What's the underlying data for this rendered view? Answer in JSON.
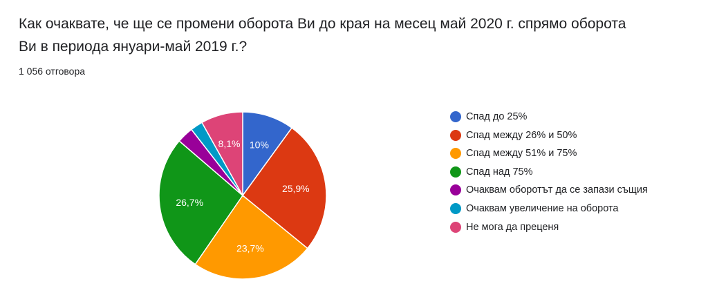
{
  "title": "Как очаквате, че ще се промени оборота Ви до края на месец май 2020 г. спрямо оборота Ви в периода януари-май 2019 г.?",
  "responses": "1 056 отговора",
  "chart_data": {
    "type": "pie",
    "start_angle_deg": 90,
    "direction": "clockwise",
    "slices": [
      {
        "label": "Спад до 25%",
        "value": 10,
        "display": "10%",
        "color": "#3366cc"
      },
      {
        "label": "Спад между 26% и 50%",
        "value": 25.9,
        "display": "25,9%",
        "color": "#dc3912"
      },
      {
        "label": "Спад между 51% и 75%",
        "value": 23.7,
        "display": "23,7%",
        "color": "#ff9900"
      },
      {
        "label": "Спад над 75%",
        "value": 26.7,
        "display": "26,7%",
        "color": "#109618"
      },
      {
        "label": "Очаквам оборотът да се запази същия",
        "value": 3.2,
        "display": "",
        "color": "#990099"
      },
      {
        "label": "Очаквам увеличение на оборота",
        "value": 2.4,
        "display": "",
        "color": "#0099c6"
      },
      {
        "label": "Не мога да преценя",
        "value": 8.1,
        "display": "8,1%",
        "color": "#dd4477"
      }
    ]
  }
}
